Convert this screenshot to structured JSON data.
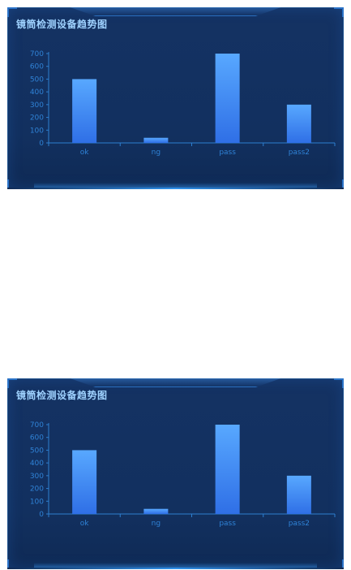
{
  "panels": [
    {
      "title": "镜筒检测设备趋势图"
    },
    {
      "title": "镜筒检测设备趋势图"
    }
  ],
  "colors": {
    "bar_top": "#58a8ff",
    "bar_bottom": "#2f6fe6",
    "axis": "#2d7fd0",
    "tick_text": "#2f82d6",
    "title": "#9fd2ff"
  },
  "chart_data": [
    {
      "type": "bar",
      "categories": [
        "ok",
        "ng",
        "pass",
        "pass2"
      ],
      "values": [
        500,
        40,
        700,
        300
      ],
      "ylim": [
        0,
        700
      ],
      "yticks": [
        0,
        100,
        200,
        300,
        400,
        500,
        600,
        700
      ],
      "grid": false,
      "title": "镜筒检测设备趋势图"
    },
    {
      "type": "bar",
      "categories": [
        "ok",
        "ng",
        "pass",
        "pass2"
      ],
      "values": [
        500,
        40,
        700,
        300
      ],
      "ylim": [
        0,
        700
      ],
      "yticks": [
        0,
        100,
        200,
        300,
        400,
        500,
        600,
        700
      ],
      "grid": false,
      "title": "镜筒检测设备趋势图"
    }
  ]
}
